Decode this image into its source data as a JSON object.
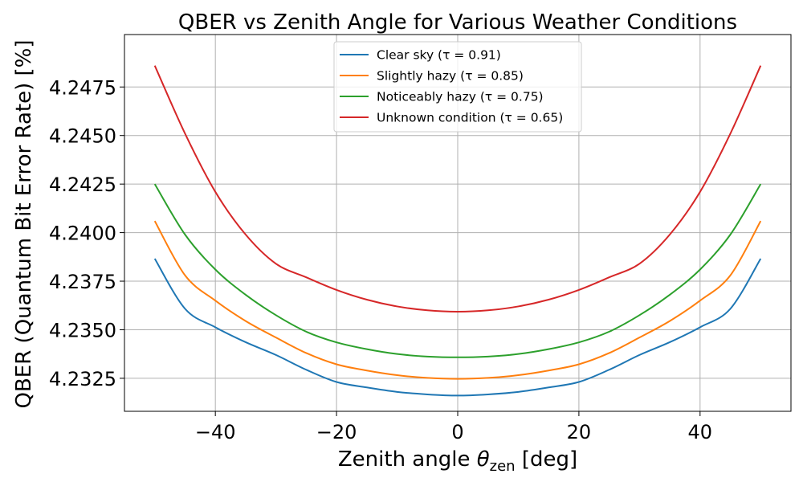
{
  "chart_data": {
    "type": "line",
    "title": "QBER vs Zenith Angle for Various Weather Conditions",
    "xlabel_main": "Zenith angle ",
    "xlabel_symbol": "θ",
    "xlabel_subscript": "zen",
    "xlabel_unit": " [deg]",
    "ylabel": "QBER (Quantum Bit Error Rate) [%]",
    "xlim": [
      -55,
      55
    ],
    "ylim": [
      4.2308,
      4.2502
    ],
    "x_ticks": [
      -40,
      -20,
      0,
      20,
      40
    ],
    "x_tick_labels": [
      "−40",
      "−20",
      "0",
      "20",
      "40"
    ],
    "y_ticks": [
      4.2325,
      4.235,
      4.2375,
      4.24,
      4.2425,
      4.245,
      4.2475
    ],
    "y_tick_labels": [
      "4.2325",
      "4.2350",
      "4.2375",
      "4.2400",
      "4.2425",
      "4.2450",
      "4.2475"
    ],
    "grid": true,
    "legend_position": "top-center",
    "x": [
      -50,
      -45,
      -40,
      -35,
      -30,
      -25,
      -20,
      -15,
      -10,
      -5,
      0,
      5,
      10,
      15,
      20,
      25,
      30,
      35,
      40,
      45,
      50
    ],
    "series": [
      {
        "name": "Clear sky (τ = 0.91)",
        "color": "#1f77b4",
        "values": [
          4.23866,
          4.23608,
          4.23513,
          4.23436,
          4.2337,
          4.23294,
          4.23231,
          4.23203,
          4.2318,
          4.23167,
          4.23161,
          4.23167,
          4.2318,
          4.23203,
          4.23231,
          4.23294,
          4.2337,
          4.23436,
          4.23513,
          4.23608,
          4.23866
        ]
      },
      {
        "name": "Slightly hazy (τ = 0.85)",
        "color": "#ff7f0e",
        "values": [
          4.2406,
          4.2378,
          4.2365,
          4.23545,
          4.2346,
          4.2338,
          4.23322,
          4.2329,
          4.23266,
          4.23252,
          4.23247,
          4.23252,
          4.23266,
          4.2329,
          4.23322,
          4.2338,
          4.2346,
          4.23545,
          4.2365,
          4.2378,
          4.2406
        ]
      },
      {
        "name": "Noticeably hazy (τ = 0.75)",
        "color": "#2ca02c",
        "values": [
          4.2425,
          4.2399,
          4.2381,
          4.2368,
          4.23575,
          4.2349,
          4.23435,
          4.234,
          4.23375,
          4.23362,
          4.23358,
          4.23362,
          4.23375,
          4.234,
          4.23435,
          4.2349,
          4.23575,
          4.2368,
          4.2381,
          4.2399,
          4.2425
        ]
      },
      {
        "name": "Unknown condition (τ = 0.65)",
        "color": "#d62728",
        "values": [
          4.2486,
          4.2451,
          4.2421,
          4.2399,
          4.2384,
          4.2377,
          4.23705,
          4.23655,
          4.2362,
          4.236,
          4.23593,
          4.236,
          4.2362,
          4.23655,
          4.23705,
          4.2377,
          4.2384,
          4.2399,
          4.2421,
          4.2451,
          4.2486
        ]
      }
    ]
  }
}
